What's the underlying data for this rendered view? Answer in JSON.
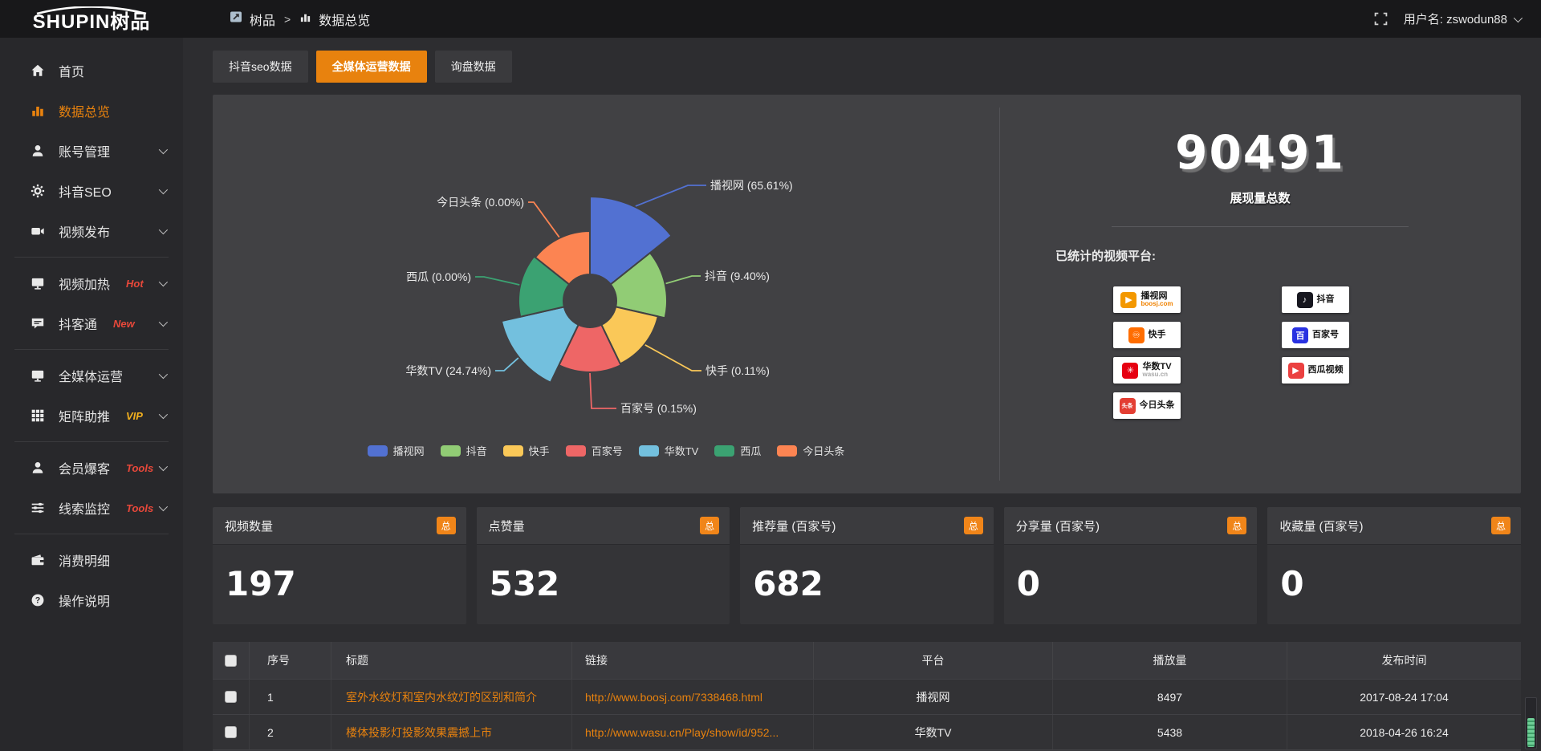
{
  "topbar": {
    "logo_main": "SHUPIN",
    "logo_cn": "树品",
    "breadcrumb": {
      "root": "树品",
      "separator": ">",
      "current": "数据总览"
    },
    "username": "用户名: zswodun88"
  },
  "sidebar": {
    "items": [
      {
        "label": "首页",
        "icon": "home-icon"
      },
      {
        "label": "数据总览",
        "icon": "chart-bar-icon",
        "active": true
      },
      {
        "label": "账号管理",
        "icon": "user-icon",
        "chevron": true
      },
      {
        "label": "抖音SEO",
        "icon": "gear-icon",
        "chevron": true
      },
      {
        "label": "视频发布",
        "icon": "camera-icon",
        "chevron": true
      },
      {
        "divider": true
      },
      {
        "label": "视频加热",
        "icon": "monitor-icon",
        "badge": "Hot",
        "badge_color": "#e8483a",
        "chevron": true
      },
      {
        "label": "抖客通",
        "icon": "chat-icon",
        "badge": "New",
        "badge_color": "#e8483a",
        "chevron": true
      },
      {
        "divider": true
      },
      {
        "label": "全媒体运营",
        "icon": "display-icon",
        "chevron": true
      },
      {
        "label": "矩阵助推",
        "icon": "grid-icon",
        "badge": "VIP",
        "badge_color": "#f2b01e",
        "chevron": true
      },
      {
        "divider": true
      },
      {
        "label": "会员爆客",
        "icon": "person-icon",
        "badge": "Tools",
        "badge_color": "#e8483a",
        "chevron": true
      },
      {
        "label": "线索监控",
        "icon": "sliders-icon",
        "badge": "Tools",
        "badge_color": "#e8483a",
        "chevron": true
      },
      {
        "divider": true
      },
      {
        "label": "消费明细",
        "icon": "wallet-icon"
      },
      {
        "label": "操作说明",
        "icon": "question-icon"
      }
    ]
  },
  "tabs": [
    {
      "label": "抖音seo数据"
    },
    {
      "label": "全媒体运营数据",
      "active": true
    },
    {
      "label": "询盘数据"
    }
  ],
  "chart_data": {
    "type": "pie",
    "subtype": "nightingale-rose",
    "categories": [
      "播视网",
      "抖音",
      "快手",
      "百家号",
      "华数TV",
      "西瓜",
      "今日头条"
    ],
    "values_percent": [
      65.61,
      9.4,
      0.11,
      0.15,
      24.74,
      0.0,
      0.0
    ],
    "colors": [
      "#5271d2",
      "#91cc75",
      "#fac858",
      "#ee6666",
      "#73c0de",
      "#3ba272",
      "#fc8452"
    ],
    "legend_position": "bottom",
    "label_format": "{name} ({percent}%)"
  },
  "summary": {
    "total_value": "90491",
    "total_label": "展现量总数",
    "platforms_label": "已统计的视频平台:",
    "platforms": [
      {
        "name": "播视网",
        "sub": "boosj.com",
        "sub_color": "#f08200",
        "logo": "boosj-logo",
        "logo_color": "#f39800",
        "logo_glyph": "▶",
        "col": 0,
        "row": 0
      },
      {
        "name": "快手",
        "logo": "kuaishou-logo",
        "logo_color": "#ff6d00",
        "logo_glyph": "♾",
        "col": 0,
        "row": 1
      },
      {
        "name": "华数TV",
        "sub": "wasu.cn",
        "sub_color": "#a9a9a9",
        "logo": "wasu-logo",
        "logo_color": "#e60012",
        "logo_glyph": "✳",
        "col": 0,
        "row": 2
      },
      {
        "name": "今日头条",
        "logo": "toutiao-logo",
        "logo_color": "#e33e33",
        "logo_glyph": "头条",
        "col": 0,
        "row": 3
      },
      {
        "name": "抖音",
        "logo": "douyin-logo",
        "logo_color": "#17171f",
        "logo_glyph": "♪",
        "col": 1,
        "row": 0
      },
      {
        "name": "百家号",
        "logo": "baijiahao-logo",
        "logo_color": "#2932e1",
        "logo_glyph": "百",
        "col": 1,
        "row": 1
      },
      {
        "name": "西瓜视频",
        "logo": "xigua-logo",
        "logo_color": "#eb4040",
        "logo_glyph": "▶",
        "col": 1,
        "row": 2
      }
    ]
  },
  "stat_cards": [
    {
      "label": "视频数量",
      "badge": "总",
      "value": "197"
    },
    {
      "label": "点赞量",
      "badge": "总",
      "value": "532"
    },
    {
      "label": "推荐量 (百家号)",
      "badge": "总",
      "value": "682"
    },
    {
      "label": "分享量 (百家号)",
      "badge": "总",
      "value": "0"
    },
    {
      "label": "收藏量 (百家号)",
      "badge": "总",
      "value": "0"
    }
  ],
  "table": {
    "headers": [
      "序号",
      "标题",
      "链接",
      "平台",
      "播放量",
      "发布时间"
    ],
    "rows": [
      {
        "index": "1",
        "title": "室外水纹灯和室内水纹灯的区别和简介",
        "link": "http://www.boosj.com/7338468.html",
        "platform": "播视网",
        "plays": "8497",
        "published": "2017-08-24 17:04"
      },
      {
        "index": "2",
        "title": "楼体投影灯投影效果震撼上市",
        "link": "http://www.wasu.cn/Play/show/id/952...",
        "platform": "华数TV",
        "plays": "5438",
        "published": "2018-04-26 16:24"
      }
    ]
  },
  "colors": {
    "accent_orange": "#e8820e",
    "panel_bg": "#414144"
  }
}
